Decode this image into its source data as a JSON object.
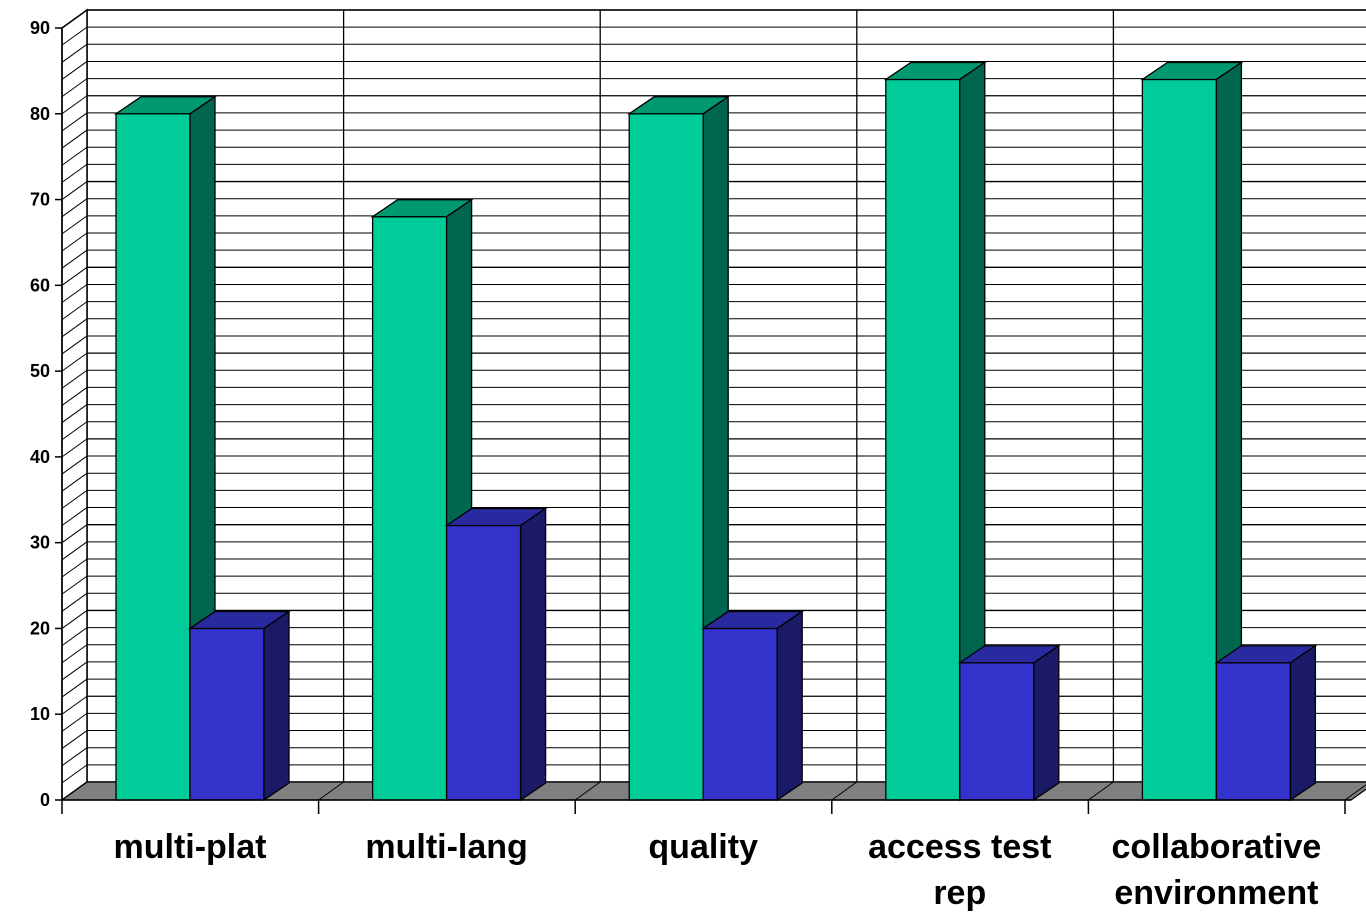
{
  "chart_data": {
    "type": "bar",
    "style": "3d-clustered",
    "categories": [
      [
        "multi-plat"
      ],
      [
        "multi-lang"
      ],
      [
        "quality"
      ],
      [
        "access test",
        "rep"
      ],
      [
        "collaborative",
        "environment"
      ]
    ],
    "series": [
      {
        "values": [
          80,
          68,
          80,
          84,
          84
        ],
        "color": "#00cc99",
        "side_color": "#006650"
      },
      {
        "values": [
          20,
          32,
          20,
          16,
          16
        ],
        "color": "#3333cc",
        "side_color": "#1a1a66"
      }
    ],
    "ylim": [
      0,
      90
    ],
    "yticks": [
      0,
      10,
      20,
      30,
      40,
      50,
      60,
      70,
      80,
      90
    ],
    "minor_step": 2,
    "grid": true,
    "legend": "none",
    "colors": {
      "floor": "#808080",
      "grid": "#000000"
    }
  }
}
